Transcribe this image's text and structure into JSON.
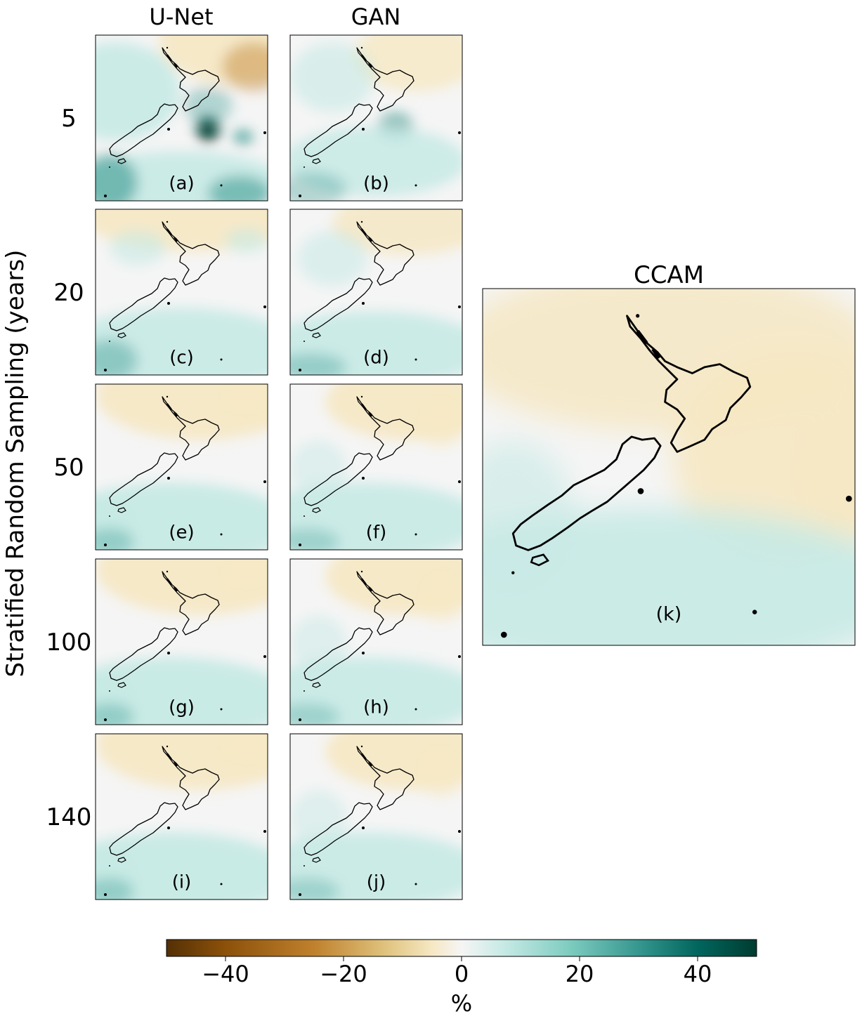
{
  "chart_data": {
    "type": "heatmap",
    "columns": [
      "U-Net",
      "GAN"
    ],
    "rows": [
      "5",
      "20",
      "50",
      "100",
      "140"
    ],
    "ylabel": "Stratified Random Sampling (years)",
    "reference_title": "CCAM",
    "panels": [
      {
        "label": "(a)",
        "model": "U-Net",
        "years": "5",
        "pattern": "unet5"
      },
      {
        "label": "(b)",
        "model": "GAN",
        "years": "5",
        "pattern": "gan5"
      },
      {
        "label": "(c)",
        "model": "U-Net",
        "years": "20",
        "pattern": "unet20"
      },
      {
        "label": "(d)",
        "model": "GAN",
        "years": "20",
        "pattern": "gan20"
      },
      {
        "label": "(e)",
        "model": "U-Net",
        "years": "50",
        "pattern": "unet"
      },
      {
        "label": "(f)",
        "model": "GAN",
        "years": "50",
        "pattern": "gan"
      },
      {
        "label": "(g)",
        "model": "U-Net",
        "years": "100",
        "pattern": "unet"
      },
      {
        "label": "(h)",
        "model": "GAN",
        "years": "100",
        "pattern": "gan"
      },
      {
        "label": "(i)",
        "model": "U-Net",
        "years": "140",
        "pattern": "unet"
      },
      {
        "label": "(j)",
        "model": "GAN",
        "years": "140",
        "pattern": "gan"
      },
      {
        "label": "(k)",
        "model": "CCAM",
        "years": "",
        "pattern": "ccam"
      }
    ],
    "colorbar": {
      "cmap": "BrBG",
      "vmin": -50,
      "vmax": 50,
      "ticks": [
        -40,
        -20,
        0,
        20,
        40
      ],
      "tick_labels": [
        "−40",
        "−20",
        "0",
        "20",
        "40"
      ],
      "label": "%"
    },
    "colors": {
      "strong_negative": "#543005",
      "negative": "#bf812d",
      "weak_negative": "#f6e8c3",
      "zero": "#f5f5f5",
      "weak_positive": "#c7eae5",
      "positive": "#35978f",
      "strong_positive": "#003c30",
      "coastline": "#000000"
    }
  }
}
